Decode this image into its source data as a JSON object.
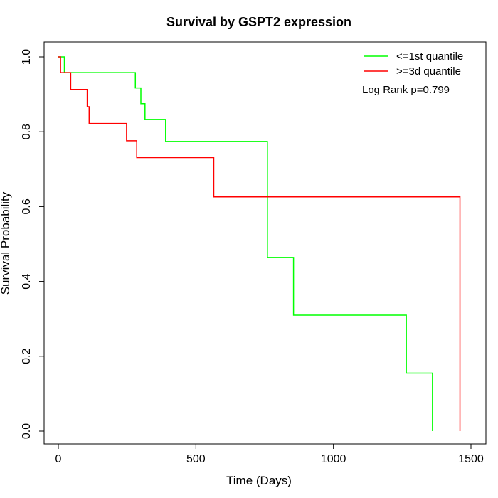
{
  "chart_data": {
    "type": "line",
    "step": true,
    "title": "Survival by GSPT2 expression",
    "xlabel": "Time (Days)",
    "ylabel": "Survival Probability",
    "xlim": [
      0,
      1500
    ],
    "ylim": [
      0,
      1.0
    ],
    "xticks": [
      0,
      500,
      1000,
      1500
    ],
    "yticks": [
      0.0,
      0.2,
      0.4,
      0.6,
      0.8,
      1.0
    ],
    "xtick_labels": [
      "0",
      "500",
      "1000",
      "1500"
    ],
    "ytick_labels": [
      "0.0",
      "0.2",
      "0.4",
      "0.6",
      "0.8",
      "1.0"
    ],
    "grid": false,
    "legend_position": "top-right",
    "annotation": "Log Rank p=0.799",
    "series": [
      {
        "name": "<=1st quantile",
        "color": "#00ff00",
        "x": [
          0,
          22,
          280,
          300,
          315,
          390,
          760,
          855,
          1265,
          1360,
          1360
        ],
        "y": [
          1.0,
          0.958,
          0.917,
          0.875,
          0.833,
          0.774,
          0.464,
          0.31,
          0.155,
          0.0,
          0.0
        ]
      },
      {
        "name": ">=3d quantile",
        "color": "#ff0000",
        "x": [
          0,
          8,
          45,
          105,
          112,
          248,
          285,
          565,
          1460,
          1460
        ],
        "y": [
          1.0,
          0.958,
          0.913,
          0.867,
          0.822,
          0.776,
          0.731,
          0.626,
          0.0,
          0.0
        ]
      }
    ]
  }
}
